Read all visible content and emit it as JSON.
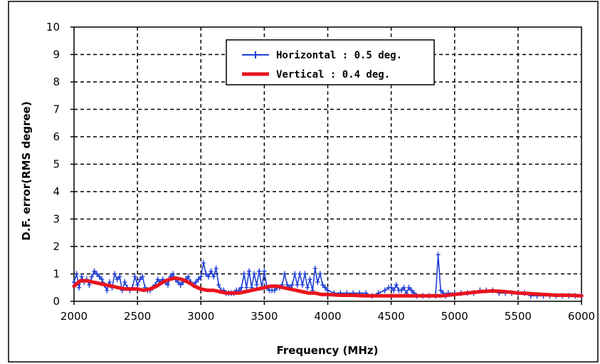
{
  "chart_data": {
    "type": "line",
    "xlabel": "Frequency (MHz)",
    "ylabel": "D.F. error(RMS degree)",
    "xlim": [
      2000,
      6000
    ],
    "ylim": [
      0,
      10
    ],
    "x_ticks": [
      2000,
      2500,
      3000,
      3500,
      4000,
      4500,
      5000,
      5500,
      6000
    ],
    "x_tick_labels": [
      "2000",
      "2500",
      "3000",
      "3500",
      "4000",
      "4500",
      "5000",
      "5500",
      "6000"
    ],
    "y_ticks": [
      0,
      1,
      2,
      3,
      4,
      5,
      6,
      7,
      8,
      9,
      10
    ],
    "y_tick_labels": [
      "0",
      "1",
      "2",
      "3",
      "4",
      "5",
      "6",
      "7",
      "8",
      "9",
      "10"
    ],
    "grid": true,
    "legend_position": "top-center",
    "series": [
      {
        "name": "Horizontal : 0.5 deg.",
        "color": "#1f3fd6",
        "marker": "plus",
        "x": [
          2000,
          2020,
          2040,
          2060,
          2080,
          2100,
          2120,
          2140,
          2160,
          2180,
          2200,
          2220,
          2240,
          2260,
          2280,
          2300,
          2320,
          2340,
          2360,
          2380,
          2400,
          2420,
          2440,
          2460,
          2480,
          2500,
          2520,
          2540,
          2560,
          2580,
          2600,
          2620,
          2640,
          2660,
          2680,
          2700,
          2720,
          2740,
          2760,
          2780,
          2800,
          2820,
          2840,
          2860,
          2880,
          2900,
          2920,
          2940,
          2960,
          2980,
          3000,
          3020,
          3040,
          3060,
          3080,
          3100,
          3120,
          3140,
          3160,
          3180,
          3200,
          3220,
          3240,
          3260,
          3280,
          3300,
          3320,
          3340,
          3360,
          3380,
          3400,
          3420,
          3440,
          3460,
          3480,
          3500,
          3520,
          3540,
          3560,
          3580,
          3600,
          3620,
          3640,
          3660,
          3680,
          3700,
          3720,
          3740,
          3760,
          3780,
          3800,
          3820,
          3840,
          3860,
          3880,
          3900,
          3920,
          3940,
          3960,
          3980,
          4000,
          4050,
          4100,
          4150,
          4200,
          4250,
          4300,
          4350,
          4400,
          4450,
          4480,
          4500,
          4520,
          4540,
          4560,
          4580,
          4600,
          4620,
          4640,
          4660,
          4680,
          4700,
          4750,
          4800,
          4850,
          4870,
          4890,
          4910,
          4930,
          4950,
          5000,
          5050,
          5100,
          5150,
          5200,
          5250,
          5300,
          5350,
          5400,
          5450,
          5500,
          5550,
          5600,
          5650,
          5700,
          5750,
          5800,
          5850,
          5900,
          5950,
          6000
        ],
        "y": [
          0.7,
          1.0,
          0.5,
          0.9,
          0.7,
          0.8,
          0.6,
          0.9,
          1.1,
          1.0,
          0.9,
          0.8,
          0.6,
          0.4,
          0.7,
          0.5,
          1.0,
          0.8,
          0.9,
          0.4,
          0.7,
          0.5,
          0.4,
          0.5,
          0.9,
          0.6,
          0.8,
          0.9,
          0.5,
          0.4,
          0.4,
          0.5,
          0.6,
          0.8,
          0.7,
          0.8,
          0.7,
          0.6,
          0.9,
          1.0,
          0.8,
          0.7,
          0.6,
          0.7,
          0.8,
          0.9,
          0.7,
          0.6,
          0.7,
          0.8,
          0.9,
          1.4,
          1.0,
          0.9,
          1.1,
          0.9,
          1.2,
          0.6,
          0.4,
          0.4,
          0.3,
          0.3,
          0.3,
          0.3,
          0.4,
          0.4,
          0.5,
          1.0,
          0.5,
          1.1,
          0.5,
          1.0,
          0.6,
          1.1,
          0.5,
          1.1,
          0.5,
          0.4,
          0.4,
          0.4,
          0.5,
          0.5,
          0.6,
          1.0,
          0.6,
          0.5,
          0.6,
          1.0,
          0.6,
          1.0,
          0.6,
          1.0,
          0.5,
          0.8,
          0.4,
          1.2,
          0.7,
          1.0,
          0.6,
          0.5,
          0.4,
          0.3,
          0.3,
          0.3,
          0.3,
          0.3,
          0.3,
          0.2,
          0.3,
          0.4,
          0.5,
          0.5,
          0.4,
          0.6,
          0.4,
          0.4,
          0.5,
          0.3,
          0.5,
          0.4,
          0.3,
          0.2,
          0.2,
          0.2,
          0.2,
          1.7,
          0.4,
          0.3,
          0.2,
          0.3,
          0.3,
          0.3,
          0.3,
          0.3,
          0.4,
          0.4,
          0.4,
          0.3,
          0.3,
          0.3,
          0.3,
          0.3,
          0.2,
          0.2,
          0.2,
          0.2,
          0.2,
          0.2,
          0.2,
          0.2,
          0.2
        ]
      },
      {
        "name": "Vertical : 0.4 deg.",
        "color": "#e8141e",
        "marker": "none",
        "x": [
          2000,
          2050,
          2100,
          2150,
          2200,
          2250,
          2300,
          2350,
          2400,
          2450,
          2500,
          2550,
          2600,
          2650,
          2700,
          2750,
          2800,
          2850,
          2900,
          2950,
          3000,
          3050,
          3100,
          3150,
          3200,
          3250,
          3300,
          3350,
          3400,
          3450,
          3500,
          3550,
          3600,
          3650,
          3700,
          3750,
          3800,
          3850,
          3900,
          3950,
          4000,
          4100,
          4200,
          4300,
          4400,
          4500,
          4600,
          4700,
          4800,
          4900,
          5000,
          5100,
          5200,
          5300,
          5400,
          5500,
          5600,
          5700,
          5800,
          5900,
          6000
        ],
        "y": [
          0.55,
          0.75,
          0.75,
          0.7,
          0.65,
          0.6,
          0.55,
          0.5,
          0.45,
          0.45,
          0.45,
          0.4,
          0.45,
          0.55,
          0.7,
          0.8,
          0.85,
          0.8,
          0.7,
          0.55,
          0.45,
          0.4,
          0.4,
          0.35,
          0.3,
          0.3,
          0.3,
          0.35,
          0.4,
          0.45,
          0.5,
          0.55,
          0.55,
          0.5,
          0.45,
          0.4,
          0.35,
          0.3,
          0.3,
          0.25,
          0.25,
          0.22,
          0.22,
          0.2,
          0.2,
          0.2,
          0.2,
          0.2,
          0.2,
          0.2,
          0.25,
          0.3,
          0.35,
          0.38,
          0.35,
          0.3,
          0.28,
          0.25,
          0.22,
          0.22,
          0.2
        ]
      }
    ]
  }
}
